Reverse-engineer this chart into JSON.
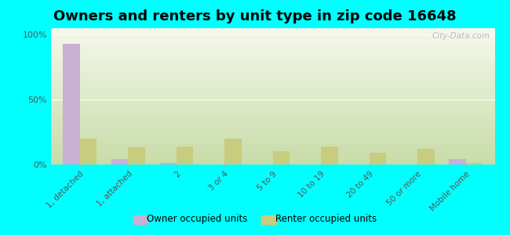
{
  "title": "Owners and renters by unit type in zip code 16648",
  "categories": [
    "1, detached",
    "1, attached",
    "2",
    "3 or 4",
    "5 to 9",
    "10 to 19",
    "20 to 49",
    "50 or more",
    "Mobile home"
  ],
  "owner_values": [
    93,
    4,
    1,
    0,
    0,
    0,
    0,
    0,
    4
  ],
  "renter_values": [
    20,
    13,
    14,
    20,
    10,
    14,
    9,
    12,
    1
  ],
  "owner_color": "#c9afd4",
  "renter_color": "#c8cc7e",
  "background_color": "#00ffff",
  "grad_bottom": "#c8dca8",
  "grad_top": "#f5f8ec",
  "yticks": [
    0,
    50,
    100
  ],
  "ylim": [
    0,
    105
  ],
  "bar_width": 0.35,
  "legend_owner": "Owner occupied units",
  "legend_renter": "Renter occupied units",
  "watermark": "City-Data.com",
  "title_fontsize": 13
}
